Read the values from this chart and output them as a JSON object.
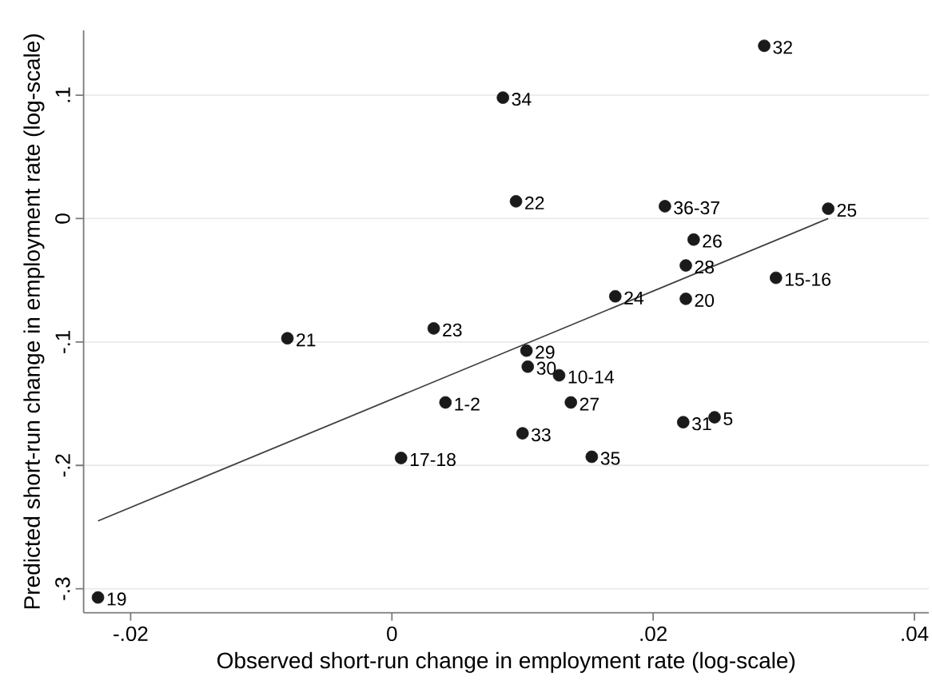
{
  "chart_data": {
    "type": "scatter",
    "xlabel": "Observed short-run change in employment rate (log-scale)",
    "ylabel": "Predicted short-run change in employment rate (log-scale)",
    "xlim": [
      -0.0236,
      0.0411
    ],
    "ylim": [
      -0.3194,
      0.1525
    ],
    "xticks": [
      {
        "value": -0.02,
        "label": "-.02"
      },
      0,
      {
        "value": 0.02,
        "label": ".02"
      },
      {
        "value": 0.04,
        "label": ".04"
      }
    ],
    "yticks": [
      {
        "value": -0.3,
        "label": "-.3"
      },
      {
        "value": -0.2,
        "label": "-.2"
      },
      {
        "value": -0.1,
        "label": "-.1"
      },
      0,
      {
        "value": 0.1,
        "label": ".1"
      }
    ],
    "grid": "y",
    "series": [
      {
        "color": "#1a1a1a",
        "marker": "circle",
        "x": [
          0.0285,
          0.0085,
          0.0095,
          0.0209,
          0.0334,
          0.0231,
          0.0225,
          0.0294,
          0.0171,
          0.0225,
          -0.008,
          0.0032,
          0.0103,
          0.0104,
          0.0128,
          0.0041,
          0.0137,
          0.01,
          0.0223,
          0.0247,
          0.0007,
          0.0153,
          -0.0225
        ],
        "values": [
          0.14,
          0.098,
          0.014,
          0.01,
          0.008,
          -0.017,
          -0.038,
          -0.048,
          -0.063,
          -0.065,
          -0.097,
          -0.089,
          -0.107,
          -0.12,
          -0.127,
          -0.149,
          -0.149,
          -0.174,
          -0.165,
          -0.161,
          -0.194,
          -0.193,
          -0.307
        ]
      },
      {
        "type": "line",
        "color": "#404040",
        "marker": "none",
        "x": [
          -0.0225,
          0.0334
        ],
        "values": [
          -0.245,
          0.0
        ]
      }
    ],
    "annotations": [
      {
        "text": "32",
        "x": 0.0285,
        "y": 0.14
      },
      {
        "text": "34",
        "x": 0.0085,
        "y": 0.098
      },
      {
        "text": "22",
        "x": 0.0095,
        "y": 0.014
      },
      {
        "text": "36-37",
        "x": 0.0209,
        "y": 0.01
      },
      {
        "text": "25",
        "x": 0.0334,
        "y": 0.008
      },
      {
        "text": "26",
        "x": 0.0231,
        "y": -0.017
      },
      {
        "text": "28",
        "x": 0.0225,
        "y": -0.038
      },
      {
        "text": "15-16",
        "x": 0.0294,
        "y": -0.048
      },
      {
        "text": "24",
        "x": 0.0171,
        "y": -0.063
      },
      {
        "text": "20",
        "x": 0.0225,
        "y": -0.065
      },
      {
        "text": "21",
        "x": -0.008,
        "y": -0.097
      },
      {
        "text": "23",
        "x": 0.0032,
        "y": -0.089
      },
      {
        "text": "29",
        "x": 0.0103,
        "y": -0.107
      },
      {
        "text": "30",
        "x": 0.0104,
        "y": -0.12
      },
      {
        "text": "10-14",
        "x": 0.0128,
        "y": -0.127
      },
      {
        "text": "1-2",
        "x": 0.0041,
        "y": -0.149
      },
      {
        "text": "27",
        "x": 0.0137,
        "y": -0.149
      },
      {
        "text": "33",
        "x": 0.01,
        "y": -0.174
      },
      {
        "text": "31",
        "x": 0.0223,
        "y": -0.165
      },
      {
        "text": "5",
        "x": 0.0247,
        "y": -0.161
      },
      {
        "text": "17-18",
        "x": 0.0007,
        "y": -0.194
      },
      {
        "text": "35",
        "x": 0.0153,
        "y": -0.193
      },
      {
        "text": "19",
        "x": -0.0225,
        "y": -0.307
      }
    ]
  }
}
